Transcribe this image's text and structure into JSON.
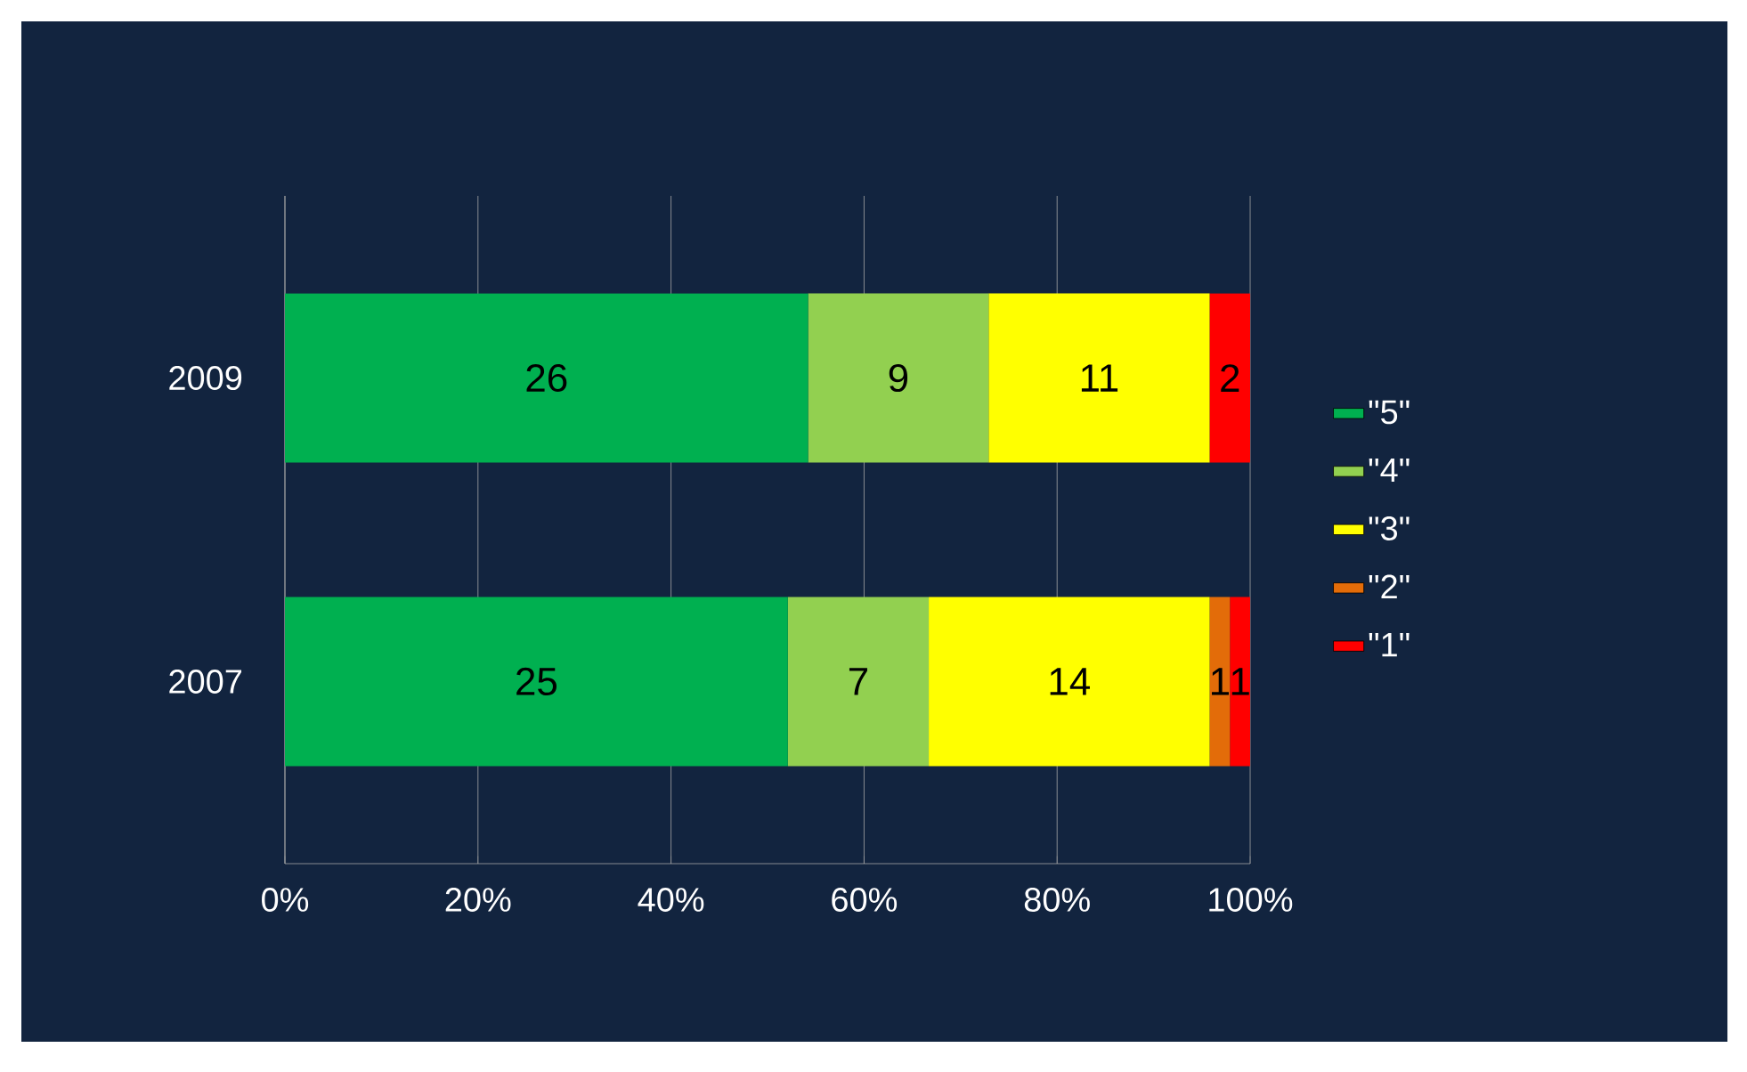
{
  "chart_data": {
    "type": "bar",
    "orientation": "horizontal",
    "stacked": true,
    "categories": [
      "2009",
      "2007"
    ],
    "series": [
      {
        "name": "\"5\"",
        "color": "#00b050",
        "values": [
          54.2,
          52.1
        ]
      },
      {
        "name": "\"4\"",
        "color": "#92d050",
        "values": [
          18.7,
          14.6
        ]
      },
      {
        "name": "\"3\"",
        "color": "#ffff00",
        "values": [
          22.9,
          29.1
        ]
      },
      {
        "name": "\"2\"",
        "color": "#e36c09",
        "values": [
          null,
          2.1
        ]
      },
      {
        "name": "\"1\"",
        "color": "#ff0000",
        "values": [
          4.2,
          2.1
        ]
      }
    ],
    "annotations": [
      "26",
      "9",
      "11",
      "2",
      "25",
      "7",
      "14",
      "1",
      "1"
    ],
    "xlim": [
      0,
      100
    ],
    "xticks": [
      {
        "value": 0,
        "label": "0%"
      },
      {
        "value": 20,
        "label": "20%"
      },
      {
        "value": 40,
        "label": "40%"
      },
      {
        "value": 60,
        "label": "60%"
      },
      {
        "value": 80,
        "label": "80%"
      },
      {
        "value": 100,
        "label": "100%"
      }
    ],
    "grid": "x",
    "legend": "right"
  }
}
